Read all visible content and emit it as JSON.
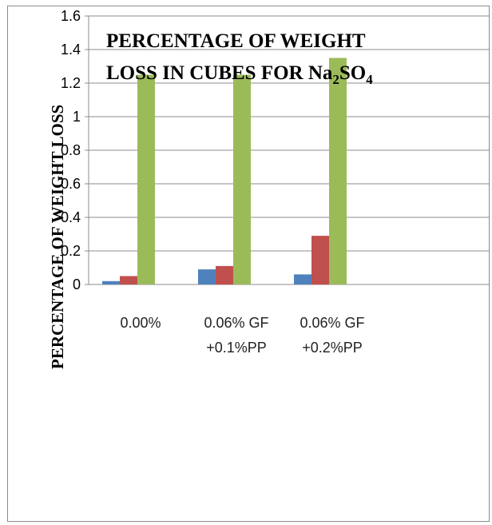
{
  "chart_data": {
    "type": "bar",
    "title_line1": "PERCENTAGE OF WEIGHT",
    "title_line2_main": "LOSS IN CUBES FOR Na",
    "title_sub1": "2",
    "title_mid": "SO",
    "title_sub2": "4",
    "ylabel": "PERCENTAGE OF WEIGHT LOSS",
    "xlabel": "",
    "ylim": [
      0,
      1.6
    ],
    "yticks": [
      "0",
      "0.2",
      "0.4",
      "0.6",
      "0.8",
      "1",
      "1.2",
      "1.4",
      "1.6"
    ],
    "categories": [
      {
        "line1": "0.00%",
        "line2": ""
      },
      {
        "line1": "0.06% GF",
        "line2": "+0.1%PP"
      },
      {
        "line1": "0.06% GF",
        "line2": "+0.2%PP"
      }
    ],
    "series": [
      {
        "color": "#4f81bd",
        "values": [
          0.02,
          0.09,
          0.06
        ]
      },
      {
        "color": "#c0504d",
        "values": [
          0.05,
          0.11,
          0.29
        ]
      },
      {
        "color": "#9bbb59",
        "values": [
          1.25,
          1.25,
          1.35
        ]
      }
    ],
    "grid": true
  }
}
